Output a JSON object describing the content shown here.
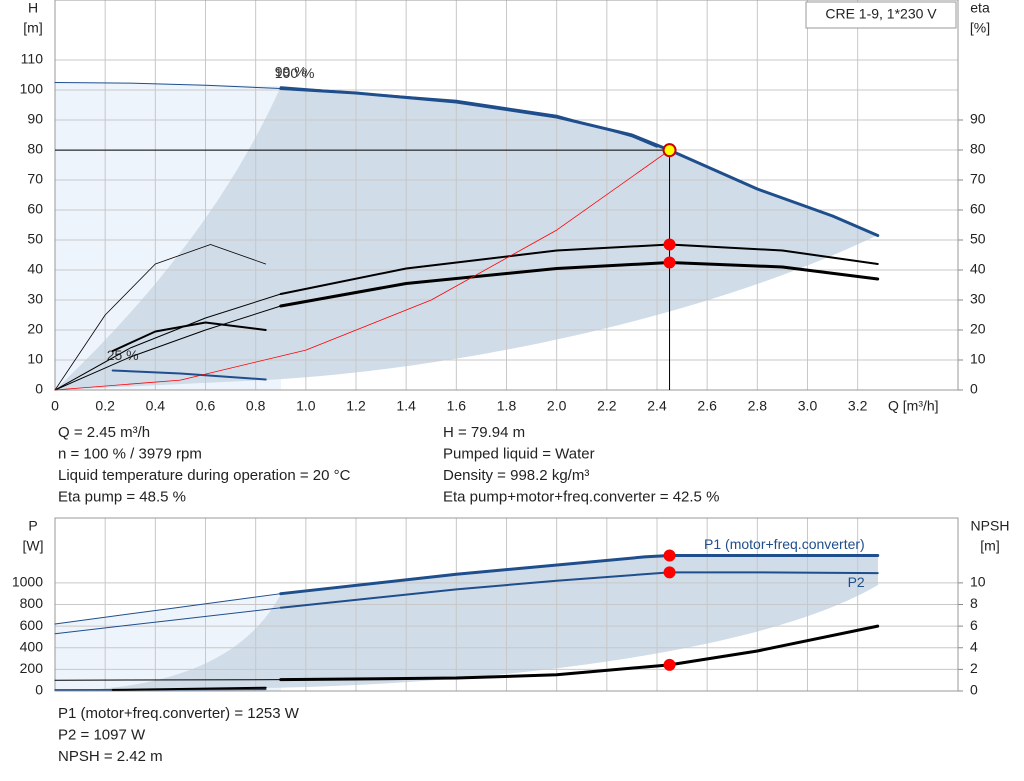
{
  "chart_data": [
    {
      "type": "line",
      "title": "CRE 1-9, 1*230 V",
      "x_label": "Q [m³/h]",
      "y_label": [
        "H",
        "[m]"
      ],
      "y2_label": [
        "eta",
        "[%]"
      ],
      "xlim": [
        0,
        3.6
      ],
      "xticks": [
        0,
        0.2,
        0.4,
        0.6,
        0.8,
        {
          "value": 1,
          "label": "1.0"
        },
        1.2,
        1.4,
        1.6,
        1.8,
        {
          "value": 2,
          "label": "2.0"
        },
        2.2,
        2.4,
        2.6,
        2.8,
        {
          "value": 3,
          "label": "3.0"
        },
        3.2
      ],
      "ylim": [
        0,
        130
      ],
      "yticks": [
        0,
        10,
        20,
        30,
        40,
        50,
        60,
        70,
        80,
        90,
        100,
        110
      ],
      "y2lim": [
        0,
        130
      ],
      "y2ticks": [
        0,
        10,
        20,
        30,
        40,
        50,
        60,
        70,
        80,
        90
      ],
      "grid": true,
      "marker_x": 2.45,
      "series": [
        {
          "x": [
            0,
            0.3,
            0.6,
            0.9
          ],
          "values": [
            102.5,
            102.3,
            101.6,
            100.5
          ],
          "color": "#1f4e8c",
          "width": 1
        },
        {
          "name": "100 %",
          "x": [
            0.9,
            1.2,
            1.6,
            2.0,
            2.3,
            2.45,
            2.8,
            3.1,
            3.28
          ],
          "values": [
            100.5,
            99,
            96,
            91,
            85,
            79.94,
            67,
            58,
            51.5
          ],
          "color": "#1f4e8c",
          "width": 3,
          "marker": true,
          "crosshair": true
        },
        {
          "name": "99 %",
          "x": [
            0.9,
            1.6,
            2.0,
            2.3,
            2.4
          ],
          "values": [
            101,
            96.5,
            91.5,
            84.5,
            81
          ],
          "color": "#1f4e8c",
          "width": 1.5
        },
        {
          "name": "25 %",
          "x": [
            0.23,
            0.5,
            0.84
          ],
          "values": [
            6.5,
            5.5,
            3.5
          ],
          "color": "#1f4e8c",
          "width": 2
        },
        {
          "x": [
            0,
            0.3,
            0.6,
            0.9
          ],
          "values": [
            0,
            14,
            24,
            32
          ],
          "color": "#000000",
          "width": 1,
          "axis": "y2"
        },
        {
          "x": [
            0.9,
            1.4,
            2.0,
            2.45,
            2.9,
            3.28
          ],
          "values": [
            32,
            40.5,
            46.5,
            48.5,
            46.5,
            42
          ],
          "color": "#000000",
          "width": 2,
          "axis": "y2",
          "marker": true
        },
        {
          "x": [
            0,
            0.3,
            0.6,
            0.9
          ],
          "values": [
            0,
            11,
            20,
            28
          ],
          "color": "#000000",
          "width": 1,
          "axis": "y2"
        },
        {
          "x": [
            0.9,
            1.4,
            2.0,
            2.45,
            2.9,
            3.28
          ],
          "values": [
            28,
            35.5,
            40.5,
            42.5,
            41,
            37
          ],
          "color": "#000000",
          "width": 3,
          "axis": "y2",
          "marker": true
        },
        {
          "x": [
            0,
            0.2,
            0.4,
            0.62,
            0.84
          ],
          "values": [
            0,
            25,
            42,
            48.5,
            42
          ],
          "color": "#000000",
          "width": 0.8,
          "axis": "y2"
        },
        {
          "x": [
            0.23,
            0.4,
            0.6,
            0.84
          ],
          "values": [
            13,
            19.5,
            22.5,
            20
          ],
          "color": "#000000",
          "width": 2,
          "axis": "y2"
        },
        {
          "x": [
            0,
            0.5,
            1.0,
            1.5,
            2.0,
            2.45
          ],
          "values": [
            0,
            3.3,
            13.3,
            30,
            53.3,
            79.94
          ],
          "color": "#ff0000",
          "width": 0.8
        }
      ],
      "info": [
        [
          "Q = 2.45 m³/h",
          "n = 100 % / 3979 rpm",
          "Liquid temperature during operation = 20 °C",
          "Eta pump = 48.5 %"
        ],
        [
          "H = 79.94 m",
          "Pumped liquid = Water",
          "Density = 998.2 kg/m³",
          "Eta pump+motor+freq.converter = 42.5 %"
        ]
      ]
    },
    {
      "type": "line",
      "y_label": [
        "P",
        "[W]"
      ],
      "y2_label": [
        "NPSH",
        "[m]"
      ],
      "xlim": [
        0,
        3.6
      ],
      "xtick_labels": false,
      "xticks": [
        0,
        0.2,
        0.4,
        0.6,
        0.8,
        1,
        1.2,
        1.4,
        1.6,
        1.8,
        2,
        2.2,
        2.4,
        2.6,
        2.8,
        3,
        3.2
      ],
      "ylim": [
        0,
        1600
      ],
      "yticks": [
        0,
        200,
        400,
        600,
        800,
        1000
      ],
      "y2lim": [
        0,
        16
      ],
      "y2ticks": [
        0,
        2,
        4,
        6,
        8,
        10
      ],
      "grid": true,
      "marker_x": 2.45,
      "series": [
        {
          "x": [
            0,
            0.45,
            0.9
          ],
          "values": [
            620,
            760,
            900
          ],
          "color": "#1f4e8c",
          "width": 1
        },
        {
          "name": "P1 (motor+freq.converter)",
          "x": [
            0.9,
            1.6,
            2.35,
            2.45,
            2.8,
            3.28
          ],
          "values": [
            900,
            1080,
            1240,
            1253,
            1253,
            1253
          ],
          "color": "#1f4e8c",
          "width": 3,
          "marker": true
        },
        {
          "x": [
            0,
            0.45,
            0.9
          ],
          "values": [
            530,
            650,
            770
          ],
          "color": "#1f4e8c",
          "width": 1
        },
        {
          "name": "P2",
          "x": [
            0.9,
            1.6,
            2.0,
            2.45,
            2.8,
            3.28
          ],
          "values": [
            770,
            940,
            1020,
            1097,
            1097,
            1090
          ],
          "color": "#1f4e8c",
          "width": 2,
          "marker": true
        },
        {
          "x": [
            0,
            0.84
          ],
          "values": [
            10,
            15
          ],
          "color": "#1f4e8c",
          "width": 1.5
        },
        {
          "x": [
            0,
            0.9
          ],
          "values": [
            1,
            1.05
          ],
          "color": "#000000",
          "width": 1,
          "axis": "y2"
        },
        {
          "x": [
            0.23,
            0.84
          ],
          "values": [
            0.1,
            0.3
          ],
          "color": "#000000",
          "width": 2,
          "axis": "y2"
        },
        {
          "x": [
            0.9,
            1.6,
            2.0,
            2.45,
            2.8,
            3.28
          ],
          "values": [
            1.05,
            1.2,
            1.5,
            2.42,
            3.7,
            6.0
          ],
          "color": "#000000",
          "width": 3,
          "axis": "y2",
          "marker": true
        }
      ],
      "info": [
        [
          "P1 (motor+freq.converter) = 1253 W",
          "P2 = 1097 W",
          "NPSH = 2.42 m"
        ]
      ]
    }
  ]
}
